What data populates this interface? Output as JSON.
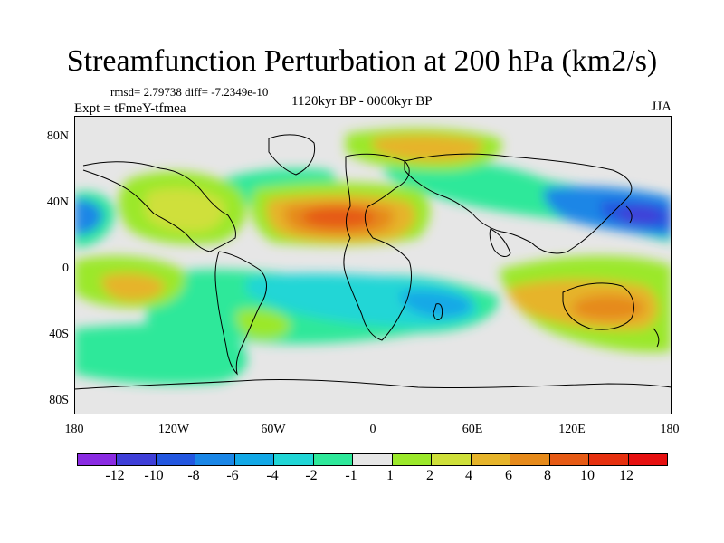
{
  "title": "Streamfunction Perturbation at 200 hPa (km2/s)",
  "stats": "rmsd= 2.79738 diff= -7.2349e-10",
  "experiment": "Expt = tFmeY-tfmea",
  "period": "1120kyr BP - 0000kyr BP",
  "season": "JJA",
  "y_axis": {
    "labels": [
      "80N",
      "40N",
      "0",
      "40S",
      "80S"
    ]
  },
  "x_axis": {
    "labels": [
      "180",
      "120W",
      "60W",
      "0",
      "60E",
      "120E",
      "180"
    ]
  },
  "colorbar": {
    "labels": [
      "-12",
      "-10",
      "-8",
      "-6",
      "-4",
      "-2",
      "-1",
      "1",
      "2",
      "4",
      "6",
      "8",
      "10",
      "12"
    ],
    "colors": [
      "#8a2be2",
      "#3f3fd8",
      "#2357e0",
      "#1a86e6",
      "#12a8e6",
      "#21d6d6",
      "#2ee89a",
      "#e6e6e6",
      "#9be82a",
      "#cfe03a",
      "#e6b42a",
      "#e68a1a",
      "#e65a14",
      "#e6300f",
      "#e61010"
    ]
  },
  "map_colors": {
    "background": "#e6e6e6",
    "cyan": "#21d6d6",
    "teal": "#2ee89a",
    "blue_mid": "#12a8e6",
    "blue": "#1a86e6",
    "blue_dark": "#2357e0",
    "indigo": "#3f3fd8",
    "green": "#9be82a",
    "yellow": "#cfe03a",
    "gold": "#e6b42a",
    "orange": "#e68a1a",
    "red_orange": "#e65a14",
    "red": "#e6300f",
    "coast": "#000000"
  }
}
